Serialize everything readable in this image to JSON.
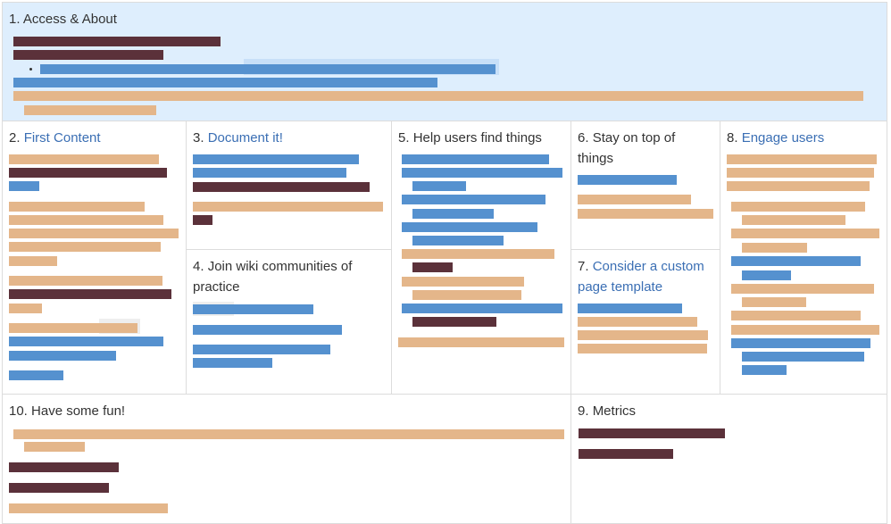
{
  "cells": {
    "access": {
      "number": "1.",
      "label": "Access & About"
    },
    "first_content": {
      "number": "2.",
      "label": "First Content"
    },
    "document_it": {
      "number": "3.",
      "label": "Document it!"
    },
    "join_wiki": {
      "number": "4.",
      "label": "Join wiki communities of practice"
    },
    "help_users": {
      "number": "5.",
      "label": "Help users find things"
    },
    "stay_on_top": {
      "number": "6.",
      "label": "Stay on top of things"
    },
    "custom_template": {
      "number": "7.",
      "label": "Consider a custom page template"
    },
    "engage_users": {
      "number": "8.",
      "label": "Engage users"
    },
    "metrics": {
      "number": "9.",
      "label": "Metrics"
    },
    "have_fun": {
      "number": "10.",
      "label": "Have some fun!"
    }
  },
  "colors": {
    "header_background": "#deeefd",
    "link_text": "#3b6fb4",
    "tan_block": "#e4b68a",
    "blue_block": "#5591cf",
    "maroon_block": "#5b313a",
    "border": "#dcdcdc"
  }
}
